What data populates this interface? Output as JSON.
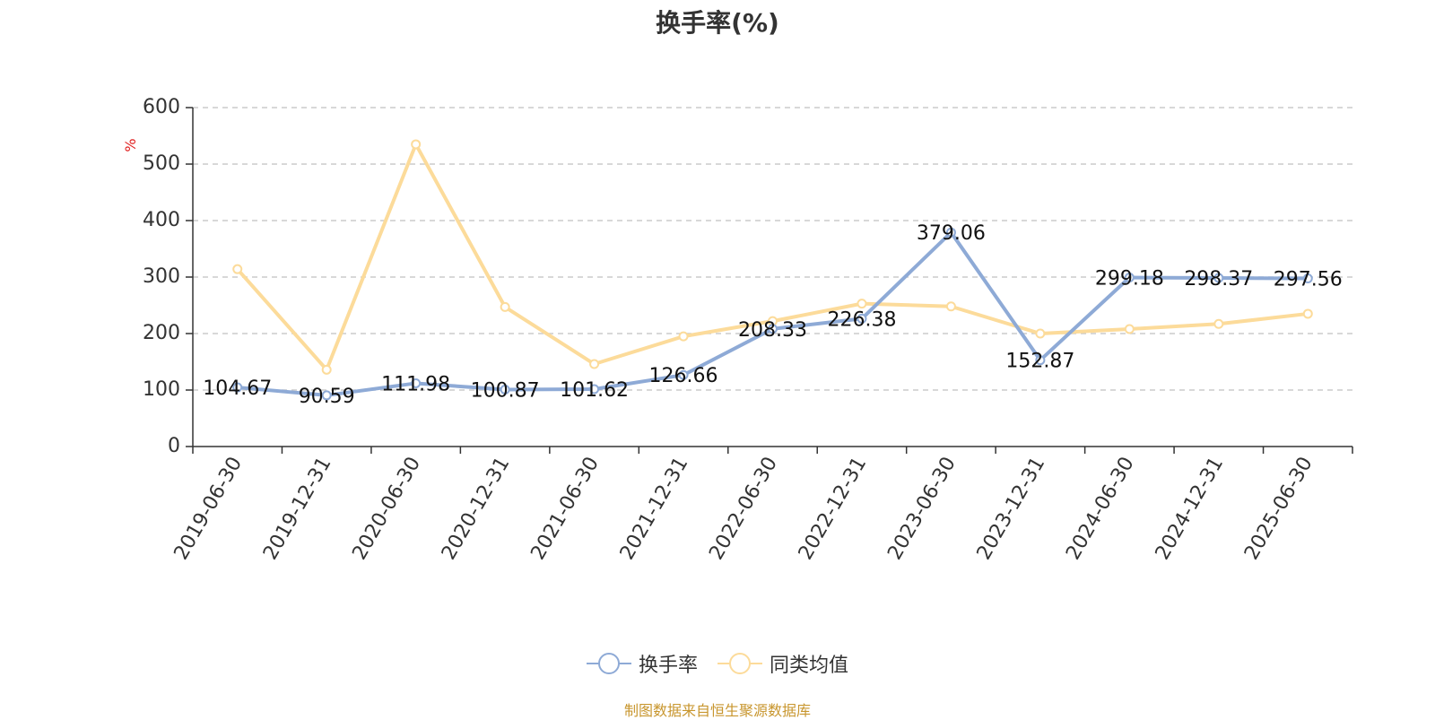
{
  "chart_data": {
    "type": "line",
    "title": "换手率(%)",
    "ylabel": "%",
    "xlabel": "",
    "ylim": [
      0,
      600
    ],
    "yticks": [
      0,
      100,
      200,
      300,
      400,
      500,
      600
    ],
    "grid": true,
    "legend_position": "bottom-center",
    "categories": [
      "2019-06-30",
      "2019-12-31",
      "2020-06-30",
      "2020-12-31",
      "2021-06-30",
      "2021-12-31",
      "2022-06-30",
      "2022-12-31",
      "2023-06-30",
      "2023-12-31",
      "2024-06-30",
      "2024-12-31",
      "2025-06-30"
    ],
    "series": [
      {
        "name": "换手率",
        "color": "#8eaad6",
        "show_labels": true,
        "values": [
          104.67,
          90.59,
          111.98,
          100.87,
          101.62,
          126.66,
          208.33,
          226.38,
          379.06,
          152.87,
          299.18,
          298.37,
          297.56
        ]
      },
      {
        "name": "同类均值",
        "color": "#fcdb9a",
        "show_labels": false,
        "values": [
          314,
          136,
          535,
          247,
          146,
          195,
          222,
          253,
          248,
          200,
          208,
          217,
          235
        ]
      }
    ]
  },
  "footer": {
    "source": "制图数据来自恒生聚源数据库"
  }
}
